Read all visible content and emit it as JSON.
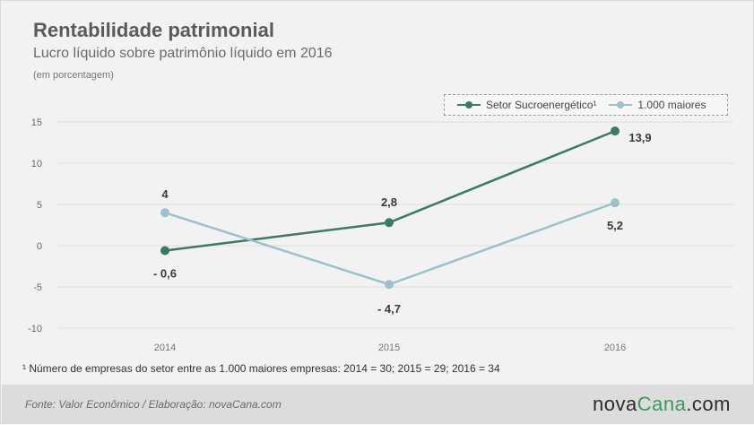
{
  "header": {
    "title": "Rentabilidade patrimonial",
    "subtitle": "Lucro líquido sobre patrimônio líquido em 2016",
    "unit_note": "(em porcentagem)"
  },
  "chart_data": {
    "type": "line",
    "title": "Rentabilidade patrimonial",
    "subtitle": "Lucro líquido sobre patrimônio líquido em 2016",
    "ylabel": "(em porcentagem)",
    "xlabel": "",
    "categories": [
      "2014",
      "2015",
      "2016"
    ],
    "ylim": [
      -10,
      15
    ],
    "yticks": [
      15,
      10,
      5,
      0,
      -5,
      -10
    ],
    "grid": true,
    "legend_position": "top-right",
    "series": [
      {
        "name": "Setor Sucroenergético¹",
        "color": "#3a7a62",
        "values": [
          -0.6,
          2.8,
          13.9
        ],
        "labels": [
          "- 0,6",
          "2,8",
          "13,9"
        ]
      },
      {
        "name": "1.000 maiores",
        "color": "#9cc1cb",
        "values": [
          4,
          -4.7,
          5.2
        ],
        "labels": [
          "4",
          "- 4,7",
          "5,2"
        ]
      }
    ]
  },
  "footnote": "¹ Número de empresas do setor entre as 1.000 maiores empresas: 2014 = 30; 2015 = 29; 2016 = 34",
  "footer": {
    "source": "Fonte: Valor Econômico / Elaboração: novaCana.com",
    "logo_prefix": "nova",
    "logo_main": "Cana",
    "logo_suffix": ".com"
  }
}
